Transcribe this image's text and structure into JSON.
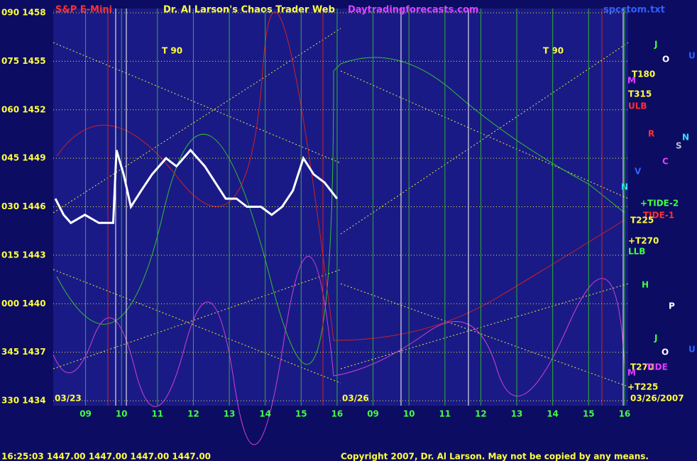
{
  "chart_data": {
    "type": "line",
    "title": "Dr. Al Larson's Chaos Trader Web",
    "symbol": "S&P E-Mini",
    "site": "Daytradingforecasts.com",
    "file": "spcctom.txt",
    "day_labels": [
      "03/23",
      "03/26",
      "03/26/2007"
    ],
    "status": "16:25:03  1447.00 1447.00 1447.00 1447.00",
    "copyright": "Copyright 2007, Dr. Al Larson. May not be copied by any means.",
    "annotations": [
      "T 90",
      "T 90",
      "T180",
      "T315",
      "ULB",
      "R",
      "N",
      "S",
      "C",
      "V",
      "N",
      "+TIDE-2",
      "TIDE-1",
      "T225",
      "+T270",
      "LLB",
      "H",
      "P",
      "J",
      "O",
      "U",
      "T270",
      "TIDE",
      "M",
      "+T225",
      "J",
      "O",
      "U",
      "M"
    ],
    "x": [
      8.16,
      8.39,
      8.59,
      8.98,
      9.37,
      9.77,
      9.86,
      10.06,
      10.26,
      10.55,
      10.85,
      11.24,
      11.53,
      11.92,
      12.32,
      12.61,
      12.9,
      13.2,
      13.49,
      13.88,
      14.18,
      14.47,
      14.77,
      15.06,
      15.35,
      15.65,
      16.0
    ],
    "values": [
      1446.5,
      1445.5,
      1445,
      1445.5,
      1445,
      1445,
      1449.5,
      1448,
      1446,
      1447,
      1448,
      1449,
      1448.5,
      1449.5,
      1448.5,
      1447.5,
      1446.5,
      1446.5,
      1446,
      1446,
      1445.5,
      1446,
      1447,
      1449,
      1448,
      1447.5,
      1446.5
    ],
    "color": "#ffffff",
    "xlim": [
      8.1,
      24.1
    ],
    "xticks": [
      {
        "value": 9,
        "label": "09"
      },
      10,
      11,
      12,
      13,
      14,
      15,
      16,
      {
        "value": 17,
        "label": "09"
      },
      {
        "value": 18,
        "label": "10"
      },
      {
        "value": 19,
        "label": "11"
      },
      {
        "value": 20,
        "label": "12"
      },
      {
        "value": 21,
        "label": "13"
      },
      {
        "value": 22,
        "label": "14"
      },
      {
        "value": 23,
        "label": "15"
      },
      {
        "value": 24,
        "label": "16"
      }
    ],
    "ylim": [
      1434,
      1458
    ],
    "yticks": [
      {
        "value": 1458,
        "label": "090 1458"
      },
      {
        "value": 1455,
        "label": "075 1455"
      },
      {
        "value": 1452,
        "label": "060 1452"
      },
      {
        "value": 1449,
        "label": "045 1449"
      },
      {
        "value": 1446,
        "label": "030 1446"
      },
      {
        "value": 1443,
        "label": "015 1443"
      },
      {
        "value": 1440,
        "label": "000 1440"
      },
      {
        "value": 1437,
        "label": "345 1437"
      },
      {
        "value": 1434,
        "label": "330 1434"
      }
    ],
    "grid": true
  }
}
